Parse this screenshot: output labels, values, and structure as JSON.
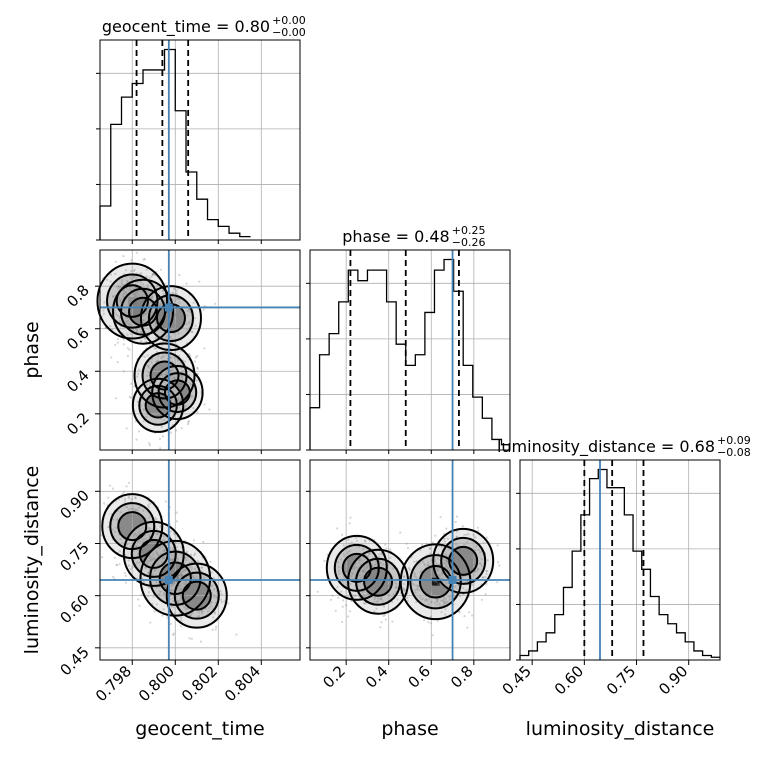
{
  "chart_data": {
    "type": "corner",
    "parameters": [
      "geocent_time",
      "phase",
      "luminosity_distance"
    ],
    "titles": [
      {
        "name": "geocent_time",
        "median": "0.80",
        "plus": "+0.00",
        "minus": "−0.00"
      },
      {
        "name": "phase",
        "median": "0.48",
        "plus": "+0.25",
        "minus": "−0.26"
      },
      {
        "name": "luminosity_distance",
        "median": "0.68",
        "plus": "+0.09",
        "minus": "−0.08"
      }
    ],
    "axis_labels": {
      "x": [
        "geocent_time",
        "phase",
        "luminosity_distance"
      ],
      "y": [
        "phase",
        "luminosity_distance"
      ]
    },
    "ranges": {
      "geocent_time": [
        0.7965,
        0.8058
      ],
      "phase": [
        0.03,
        0.97
      ],
      "luminosity_distance": [
        0.415,
        0.99
      ]
    },
    "ticks": {
      "geocent_time": [
        "0.798",
        "0.800",
        "0.802",
        "0.804"
      ],
      "phase_x": [
        "0.2",
        "0.4",
        "0.6",
        "0.8"
      ],
      "phase_y": [
        "0.2",
        "0.4",
        "0.6",
        "0.8"
      ],
      "luminosity_distance": [
        "0.45",
        "0.60",
        "0.75",
        "0.90"
      ]
    },
    "truths": {
      "geocent_time": 0.7997,
      "phase": 0.7,
      "luminosity_distance": 0.645
    },
    "quantiles": {
      "geocent_time": [
        0.7982,
        0.7994,
        0.8006
      ],
      "phase": [
        0.22,
        0.48,
        0.73
      ],
      "luminosity_distance": [
        0.6,
        0.68,
        0.77
      ]
    },
    "hist_geocent_time": {
      "bins": [
        0.7965,
        0.797,
        0.7975,
        0.798,
        0.7985,
        0.799,
        0.7995,
        0.8,
        0.8005,
        0.801,
        0.8015,
        0.802,
        0.8025,
        0.803,
        0.8035
      ],
      "counts": [
        5,
        17,
        21,
        23,
        25,
        25,
        28,
        19,
        10,
        6,
        3,
        2,
        1,
        0.5
      ]
    },
    "hist_phase": {
      "bins": [
        0.03,
        0.075,
        0.12,
        0.165,
        0.21,
        0.255,
        0.3,
        0.345,
        0.39,
        0.435,
        0.48,
        0.525,
        0.57,
        0.615,
        0.66,
        0.705,
        0.75,
        0.795,
        0.84,
        0.885,
        0.93,
        0.97
      ],
      "counts": [
        4,
        9,
        11,
        14,
        17,
        16,
        17,
        17,
        14,
        10,
        8,
        9,
        13,
        17,
        18,
        15,
        8,
        5,
        3,
        1,
        0.5
      ]
    },
    "hist_luminosity_distance": {
      "bins": [
        0.415,
        0.44,
        0.465,
        0.49,
        0.515,
        0.54,
        0.565,
        0.59,
        0.615,
        0.64,
        0.665,
        0.69,
        0.715,
        0.74,
        0.765,
        0.79,
        0.815,
        0.84,
        0.865,
        0.89,
        0.915,
        0.94,
        0.965,
        0.99
      ],
      "counts": [
        0.5,
        1,
        2,
        3,
        5,
        8,
        12,
        16,
        20,
        21,
        19,
        19,
        16,
        12,
        10,
        7,
        5,
        4,
        3,
        2,
        1,
        0.5,
        0.3
      ]
    },
    "density_phase_vs_geocent_time": [
      {
        "x": 0.798,
        "y": 0.73,
        "level": 3
      },
      {
        "x": 0.7985,
        "y": 0.68,
        "level": 2
      },
      {
        "x": 0.7998,
        "y": 0.65,
        "level": 2
      },
      {
        "x": 0.7995,
        "y": 0.38,
        "level": 2
      },
      {
        "x": 0.8001,
        "y": 0.3,
        "level": 1
      },
      {
        "x": 0.7992,
        "y": 0.24,
        "level": 1
      }
    ],
    "density_luminosity_distance_vs_geocent_time": [
      {
        "x": 0.798,
        "y": 0.8,
        "level": 2
      },
      {
        "x": 0.799,
        "y": 0.72,
        "level": 2
      },
      {
        "x": 0.8,
        "y": 0.65,
        "level": 3
      },
      {
        "x": 0.801,
        "y": 0.6,
        "level": 2
      }
    ],
    "density_luminosity_distance_vs_phase": [
      {
        "x": 0.25,
        "y": 0.68,
        "level": 2
      },
      {
        "x": 0.35,
        "y": 0.64,
        "level": 2
      },
      {
        "x": 0.62,
        "y": 0.64,
        "level": 3
      },
      {
        "x": 0.75,
        "y": 0.7,
        "level": 2
      }
    ]
  }
}
